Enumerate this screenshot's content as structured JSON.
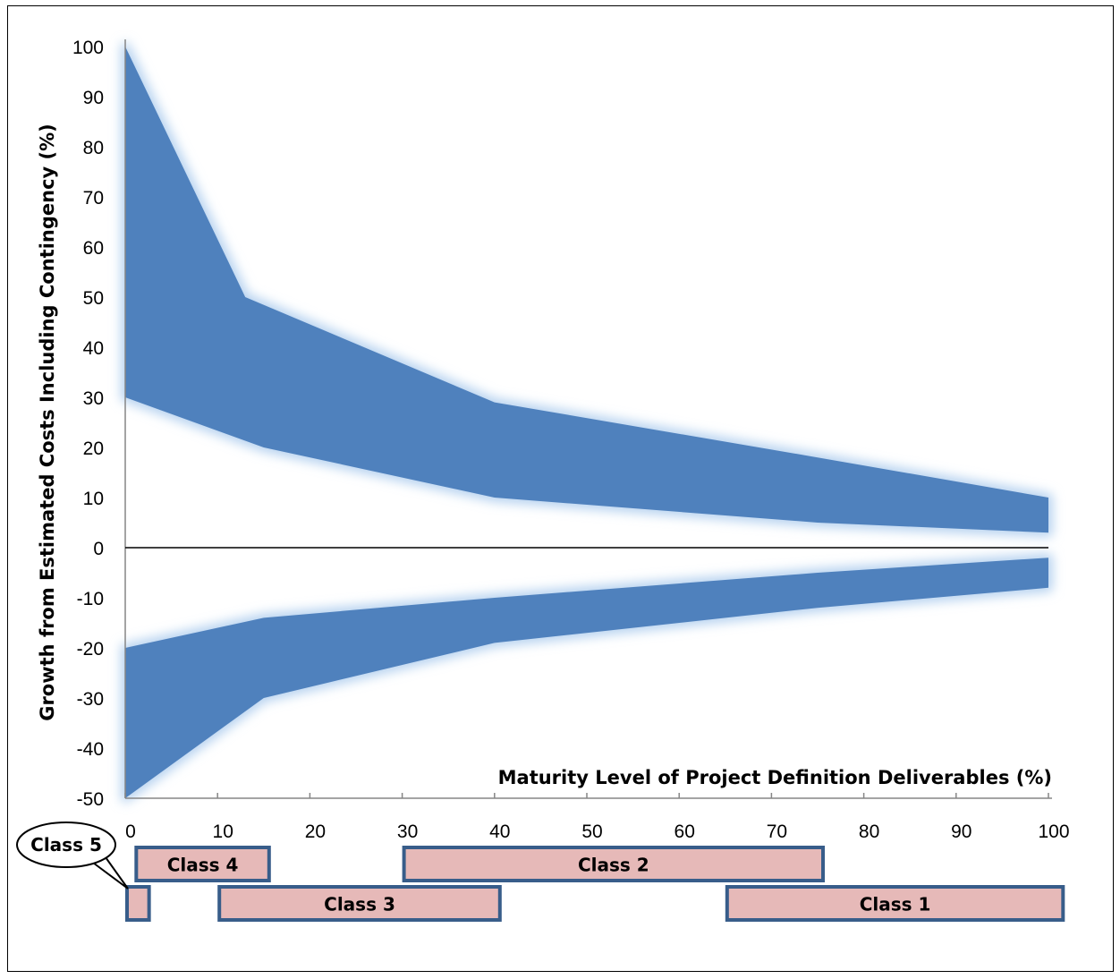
{
  "chart_data": {
    "type": "area",
    "xlabel": "Maturity Level of Project Definition Deliverables (%)",
    "ylabel": "Growth from Estimated Costs Including Contingency (%)",
    "xlim": [
      0,
      100
    ],
    "ylim": [
      -50,
      100
    ],
    "x_ticks": [
      0,
      10,
      20,
      30,
      40,
      50,
      60,
      70,
      80,
      90,
      100
    ],
    "y_ticks": [
      100,
      90,
      80,
      70,
      60,
      50,
      40,
      30,
      20,
      10,
      0,
      -10,
      -20,
      -30,
      -40,
      -50
    ],
    "grid": false,
    "fill_color": "#4f81bd",
    "glow_color": "#b8d3f0",
    "bands": [
      {
        "upper": [
          [
            0,
            100
          ],
          [
            13,
            50
          ],
          [
            40,
            29
          ],
          [
            75,
            18
          ],
          [
            100,
            10
          ]
        ],
        "lower": [
          [
            0,
            30
          ],
          [
            15,
            20
          ],
          [
            40,
            10
          ],
          [
            75,
            5
          ],
          [
            100,
            3
          ]
        ]
      },
      {
        "upper": [
          [
            0,
            -20
          ],
          [
            15,
            -14
          ],
          [
            40,
            -10
          ],
          [
            75,
            -5
          ],
          [
            100,
            -2
          ]
        ],
        "lower": [
          [
            0,
            -50
          ],
          [
            15,
            -30
          ],
          [
            40,
            -19
          ],
          [
            75,
            -12
          ],
          [
            100,
            -8
          ]
        ]
      }
    ],
    "classes": [
      {
        "label": "Class 5",
        "from": 0,
        "to": 2,
        "row": 2,
        "callout": true
      },
      {
        "label": "Class 4",
        "from": 1,
        "to": 15,
        "row": 1
      },
      {
        "label": "Class 3",
        "from": 10,
        "to": 40,
        "row": 2
      },
      {
        "label": "Class 2",
        "from": 30,
        "to": 75,
        "row": 1
      },
      {
        "label": "Class 1",
        "from": 65,
        "to": 101,
        "row": 2
      }
    ],
    "class_fill": "#e6b9b8",
    "class_border": "#385d8a"
  }
}
